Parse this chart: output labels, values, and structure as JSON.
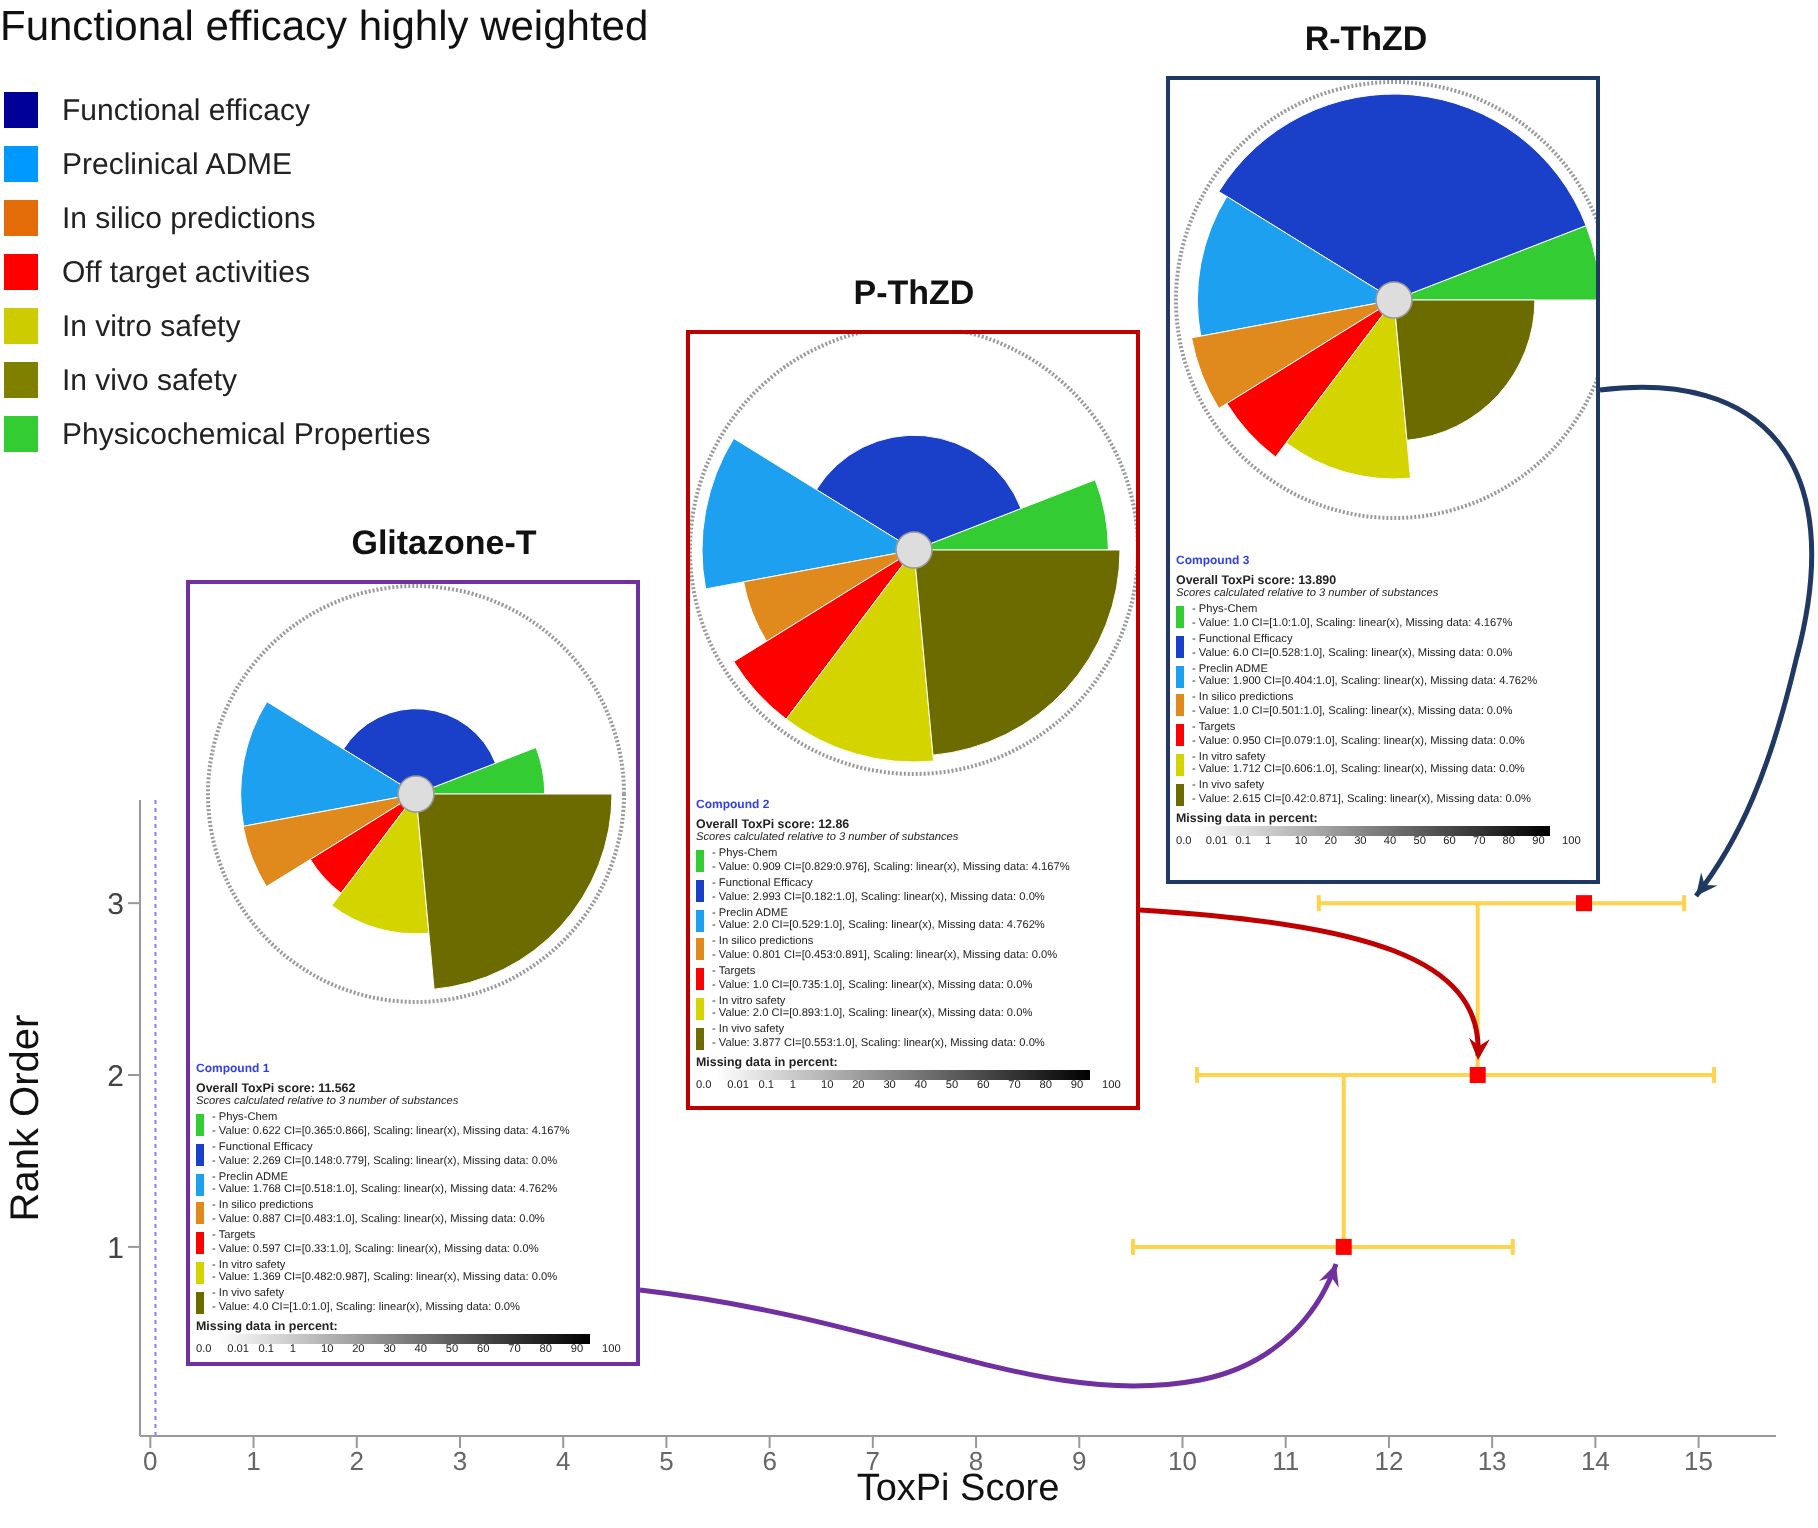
{
  "chart_data": [
    {
      "type": "other",
      "title": "Functional efficacy highly weighted",
      "categories": [
        "Functional efficacy",
        "Preclinical ADME",
        "In silico predictions",
        "Off target activities",
        "In vitro safety",
        "In vivo safety",
        "Physicochemical Properties"
      ],
      "colors": [
        "#000099",
        "#0099ff",
        "#e36c09",
        "#ff0000",
        "#cccc00",
        "#7f7f00",
        "#33cc33"
      ]
    },
    {
      "type": "scatter",
      "xlabel": "ToxPi Score",
      "ylabel": "Rank Order",
      "xlim": [
        -0.1,
        15.75
      ],
      "xticks": [
        0,
        1,
        2,
        3,
        4,
        5,
        6,
        7,
        8,
        9,
        10,
        11,
        12,
        13,
        14,
        15
      ],
      "ylim": [
        -0.1,
        3.6
      ],
      "yticks": [
        1,
        2,
        3
      ],
      "grid": false,
      "series": [
        {
          "type": "scatter",
          "x": [
            11.562,
            12.86,
            13.89
          ],
          "values": [
            1,
            2,
            3
          ],
          "xerrors": [
            [
              9.52,
              13.2
            ],
            [
              10.14,
              15.15
            ],
            [
              11.32,
              14.86
            ]
          ],
          "color": "#ff0000",
          "marker": "square"
        },
        {
          "type": "line",
          "x": [
            11.562,
            11.562
          ],
          "values": [
            1,
            2
          ],
          "color": "#ffd34d",
          "marker": "none"
        },
        {
          "type": "line",
          "x": [
            12.86,
            12.86
          ],
          "values": [
            2,
            3
          ],
          "color": "#ffd34d",
          "marker": "none"
        }
      ],
      "ref_lines": [
        {
          "axis": "x",
          "value": 0.05,
          "color": "#8080ff",
          "line_style": "dotted"
        }
      ]
    },
    {
      "type": "other",
      "title": "Glitazone-T",
      "subtitle": "Compound 1",
      "categories": [
        "- Phys-Chem",
        "- Functional Efficacy",
        "- Preclin ADME",
        "- In silico predictions",
        "- Targets",
        "- In vitro safety",
        "- In vivo safety"
      ],
      "values": [
        0.622,
        2.269,
        1.768,
        0.887,
        0.597,
        1.369,
        4.0
      ],
      "colors": [
        "#33cc33",
        "#1a3fc8",
        "#1ea0f0",
        "#e08a1e",
        "#ff0000",
        "#d4d400",
        "#6b6b00"
      ],
      "value_labels": [
        "- Value: 0.622 CI=[0.365:0.866], Scaling: linear(x), Missing data: 4.167%",
        "- Value: 2.269 CI=[0.148:0.779], Scaling: linear(x), Missing data: 0.0%",
        "- Value: 1.768 CI=[0.518:1.0], Scaling: linear(x), Missing data: 4.762%",
        "- Value: 0.887 CI=[0.483:1.0], Scaling: linear(x), Missing data: 0.0%",
        "- Value: 0.597 CI=[0.33:1.0], Scaling: linear(x), Missing data: 0.0%",
        "- Value: 1.369 CI=[0.482:0.987], Scaling: linear(x), Missing data: 0.0%",
        "- Value: 4.0 CI=[1.0:1.0], Scaling: linear(x), Missing data: 0.0%"
      ],
      "annotations": [
        "Overall ToxPi score: 11.562",
        "Scores calculated relative to 3 number of substances",
        "Missing data in percent:",
        "0.0 0.01 0.1 1 10 20 30 40 50 60 70 80 90 100"
      ]
    },
    {
      "type": "other",
      "title": "P-ThZD",
      "subtitle": "Compound 2",
      "categories": [
        "- Phys-Chem",
        "- Functional Efficacy",
        "- Preclin ADME",
        "- In silico predictions",
        "- Targets",
        "- In vitro safety",
        "- In vivo safety"
      ],
      "values": [
        0.909,
        2.993,
        2.0,
        0.801,
        1.0,
        2.0,
        3.877
      ],
      "colors": [
        "#33cc33",
        "#1a3fc8",
        "#1ea0f0",
        "#e08a1e",
        "#ff0000",
        "#d4d400",
        "#6b6b00"
      ],
      "value_labels": [
        "- Value: 0.909 CI=[0.829:0.976], Scaling: linear(x), Missing data: 4.167%",
        "- Value: 2.993 CI=[0.182:1.0], Scaling: linear(x), Missing data: 0.0%",
        "- Value: 2.0 CI=[0.529:1.0], Scaling: linear(x), Missing data: 4.762%",
        "- Value: 0.801 CI=[0.453:0.891], Scaling: linear(x), Missing data: 0.0%",
        "- Value: 1.0 CI=[0.735:1.0], Scaling: linear(x), Missing data: 0.0%",
        "- Value: 2.0 CI=[0.893:1.0], Scaling: linear(x), Missing data: 0.0%",
        "- Value: 3.877 CI=[0.553:1.0], Scaling: linear(x), Missing data: 0.0%"
      ],
      "annotations": [
        "Overall ToxPi score: 12.86",
        "Scores calculated relative to 3 number of substances",
        "Missing data in percent:",
        "0.0 0.01 0.1 1 10 20 30 40 50 60 70 80 90 100"
      ]
    },
    {
      "type": "other",
      "title": "R-ThZD",
      "subtitle": "Compound 3",
      "categories": [
        "- Phys-Chem",
        "- Functional Efficacy",
        "- Preclin ADME",
        "- In silico predictions",
        "- Targets",
        "- In vitro safety",
        "- In vivo safety"
      ],
      "values": [
        1.0,
        6.0,
        1.9,
        1.0,
        0.95,
        1.712,
        2.615
      ],
      "colors": [
        "#33cc33",
        "#1a3fc8",
        "#1ea0f0",
        "#e08a1e",
        "#ff0000",
        "#d4d400",
        "#6b6b00"
      ],
      "value_labels": [
        "- Value: 1.0 CI=[1.0:1.0], Scaling: linear(x), Missing data: 4.167%",
        "- Value: 6.0 CI=[0.528:1.0], Scaling: linear(x), Missing data: 0.0%",
        "- Value: 1.900 CI=[0.404:1.0], Scaling: linear(x), Missing data: 4.762%",
        "- Value: 1.0 CI=[0.501:1.0], Scaling: linear(x), Missing data: 0.0%",
        "- Value: 0.950 CI=[0.079:1.0], Scaling: linear(x), Missing data: 0.0%",
        "- Value: 1.712 CI=[0.606:1.0], Scaling: linear(x), Missing data: 0.0%",
        "- Value: 2.615 CI=[0.42:0.871], Scaling: linear(x), Missing data: 0.0%"
      ],
      "annotations": [
        "Overall ToxPi score: 13.890",
        "Scores calculated relative to 3 number of substances",
        "Missing data in percent:",
        "0.0 0.01 0.1 1 10 20 30 40 50 60 70 80 90 100"
      ]
    }
  ]
}
